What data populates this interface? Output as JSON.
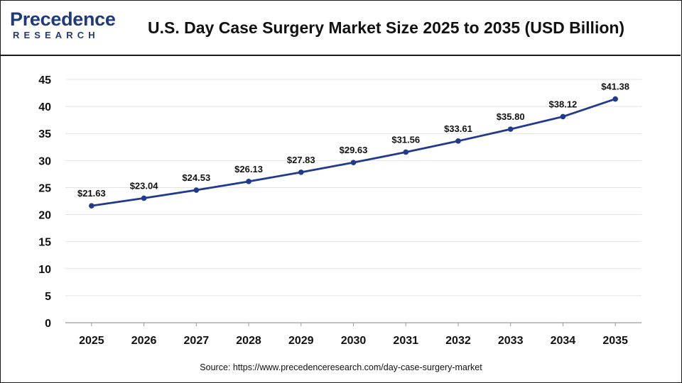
{
  "brand": {
    "logo_word": "Precedence",
    "logo_sub": "RESEARCH",
    "color": "#1f3a7a"
  },
  "chart_data": {
    "type": "line",
    "title": "U.S. Day Case Surgery Market Size 2025 to 2035 (USD Billion)",
    "x": [
      "2025",
      "2026",
      "2027",
      "2028",
      "2029",
      "2030",
      "2031",
      "2032",
      "2033",
      "2034",
      "2035"
    ],
    "series": [
      {
        "values": [
          21.63,
          23.04,
          24.53,
          26.13,
          27.83,
          29.63,
          31.56,
          33.61,
          35.8,
          38.12,
          41.38
        ],
        "labels": [
          "$21.63",
          "$23.04",
          "$24.53",
          "$26.13",
          "$27.83",
          "$29.63",
          "$31.56",
          "$33.61",
          "$35.80",
          "$38.12",
          "$41.38"
        ],
        "color": "#1f3a8f"
      }
    ],
    "ylim": [
      0,
      45
    ],
    "yticks": [
      "0",
      "5",
      "10",
      "15",
      "20",
      "25",
      "30",
      "35",
      "40",
      "45"
    ],
    "grid": true,
    "legend": "none"
  },
  "source": "Source: https://www.precedenceresearch.com/day-case-surgery-market"
}
